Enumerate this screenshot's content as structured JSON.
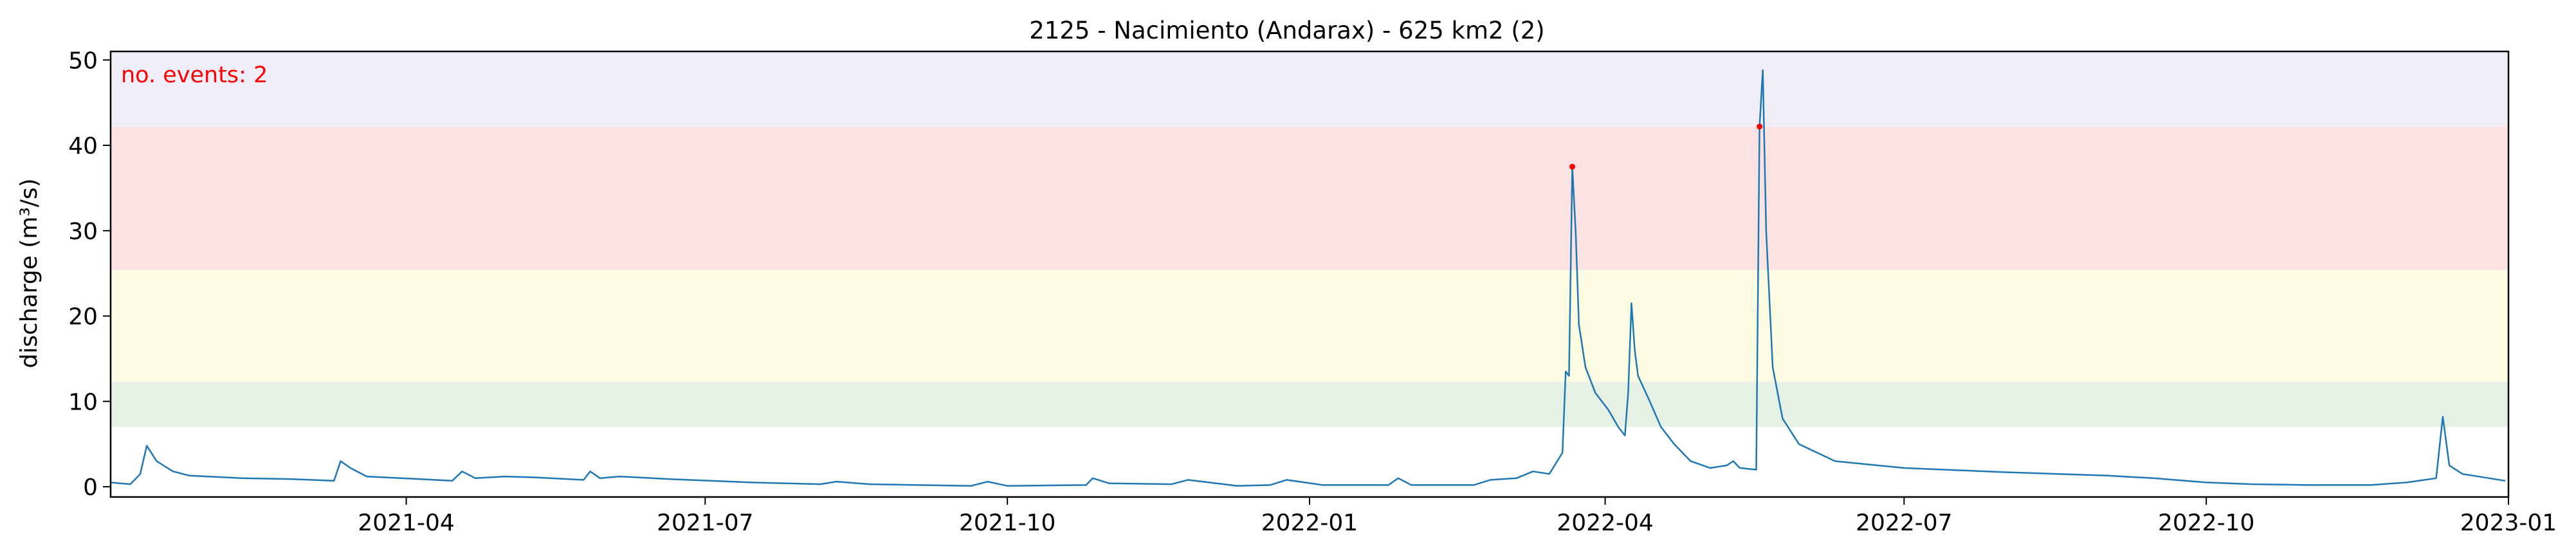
{
  "chart_data": {
    "type": "line",
    "title": "2125 - Nacimiento (Andarax) - 625 km2 (2)",
    "xlabel": "",
    "ylabel": "discharge (m³/s)",
    "annotation": "no. events: 2",
    "xlim": [
      "2021-01-01",
      "2023-01-01"
    ],
    "ylim": [
      -1.2,
      51
    ],
    "xticks": [
      {
        "date": "2021-04-01",
        "label": "2021-04"
      },
      {
        "date": "2021-07-01",
        "label": "2021-07"
      },
      {
        "date": "2021-10-01",
        "label": "2021-10"
      },
      {
        "date": "2022-01-01",
        "label": "2022-01"
      },
      {
        "date": "2022-04-01",
        "label": "2022-04"
      },
      {
        "date": "2022-07-01",
        "label": "2022-07"
      },
      {
        "date": "2022-10-01",
        "label": "2022-10"
      },
      {
        "date": "2023-01-01",
        "label": "2023-01"
      }
    ],
    "yticks": [
      0,
      10,
      20,
      30,
      40,
      50
    ],
    "threshold_bands": [
      {
        "from": 7.0,
        "to": 12.3,
        "color": "#e5f1e5"
      },
      {
        "from": 12.3,
        "to": 25.4,
        "color": "#fdfde3"
      },
      {
        "from": 25.4,
        "to": 42.2,
        "color": "#fde2e4"
      },
      {
        "from": 42.2,
        "to": 51,
        "color": "#f1eefa"
      }
    ],
    "series": [
      {
        "color": "#1f77b4",
        "points": [
          [
            "2021-01-01",
            0.5
          ],
          [
            "2021-01-07",
            0.3
          ],
          [
            "2021-01-10",
            1.5
          ],
          [
            "2021-01-12",
            4.8
          ],
          [
            "2021-01-15",
            3.0
          ],
          [
            "2021-01-20",
            1.8
          ],
          [
            "2021-01-25",
            1.3
          ],
          [
            "2021-02-10",
            1.0
          ],
          [
            "2021-02-25",
            0.9
          ],
          [
            "2021-03-10",
            0.7
          ],
          [
            "2021-03-12",
            3.0
          ],
          [
            "2021-03-15",
            2.2
          ],
          [
            "2021-03-20",
            1.2
          ],
          [
            "2021-04-05",
            0.9
          ],
          [
            "2021-04-15",
            0.7
          ],
          [
            "2021-04-18",
            1.8
          ],
          [
            "2021-04-22",
            1.0
          ],
          [
            "2021-05-01",
            1.2
          ],
          [
            "2021-05-10",
            1.1
          ],
          [
            "2021-05-25",
            0.8
          ],
          [
            "2021-05-27",
            1.8
          ],
          [
            "2021-05-30",
            1.0
          ],
          [
            "2021-06-05",
            1.2
          ],
          [
            "2021-06-20",
            0.9
          ],
          [
            "2021-07-15",
            0.5
          ],
          [
            "2021-08-05",
            0.3
          ],
          [
            "2021-08-10",
            0.6
          ],
          [
            "2021-08-20",
            0.3
          ],
          [
            "2021-09-20",
            0.1
          ],
          [
            "2021-09-25",
            0.6
          ],
          [
            "2021-10-01",
            0.1
          ],
          [
            "2021-10-25",
            0.2
          ],
          [
            "2021-10-27",
            1.0
          ],
          [
            "2021-11-01",
            0.4
          ],
          [
            "2021-11-20",
            0.3
          ],
          [
            "2021-11-25",
            0.8
          ],
          [
            "2021-12-10",
            0.1
          ],
          [
            "2021-12-20",
            0.2
          ],
          [
            "2021-12-25",
            0.8
          ],
          [
            "2022-01-05",
            0.2
          ],
          [
            "2022-01-25",
            0.2
          ],
          [
            "2022-01-28",
            1.0
          ],
          [
            "2022-02-01",
            0.2
          ],
          [
            "2022-02-20",
            0.2
          ],
          [
            "2022-02-25",
            0.8
          ],
          [
            "2022-03-05",
            1.0
          ],
          [
            "2022-03-10",
            1.8
          ],
          [
            "2022-03-15",
            1.5
          ],
          [
            "2022-03-19",
            4.0
          ],
          [
            "2022-03-20",
            13.5
          ],
          [
            "2022-03-21",
            13.0
          ],
          [
            "2022-03-22",
            37.5
          ],
          [
            "2022-03-23",
            30.0
          ],
          [
            "2022-03-24",
            19.0
          ],
          [
            "2022-03-26",
            14.0
          ],
          [
            "2022-03-29",
            11.0
          ],
          [
            "2022-04-02",
            9.0
          ],
          [
            "2022-04-05",
            7.0
          ],
          [
            "2022-04-07",
            6.0
          ],
          [
            "2022-04-08",
            11.0
          ],
          [
            "2022-04-09",
            21.5
          ],
          [
            "2022-04-10",
            16.0
          ],
          [
            "2022-04-11",
            13.0
          ],
          [
            "2022-04-14",
            10.5
          ],
          [
            "2022-04-18",
            7.0
          ],
          [
            "2022-04-22",
            5.0
          ],
          [
            "2022-04-27",
            3.0
          ],
          [
            "2022-05-03",
            2.2
          ],
          [
            "2022-05-08",
            2.5
          ],
          [
            "2022-05-10",
            3.0
          ],
          [
            "2022-05-12",
            2.2
          ],
          [
            "2022-05-17",
            2.0
          ],
          [
            "2022-05-18",
            42.2
          ],
          [
            "2022-05-19",
            48.8
          ],
          [
            "2022-05-20",
            30.0
          ],
          [
            "2022-05-22",
            14.0
          ],
          [
            "2022-05-25",
            8.0
          ],
          [
            "2022-05-30",
            5.0
          ],
          [
            "2022-06-10",
            3.0
          ],
          [
            "2022-07-01",
            2.2
          ],
          [
            "2022-08-01",
            1.7
          ],
          [
            "2022-09-01",
            1.3
          ],
          [
            "2022-09-15",
            1.0
          ],
          [
            "2022-10-01",
            0.5
          ],
          [
            "2022-10-15",
            0.3
          ],
          [
            "2022-11-01",
            0.2
          ],
          [
            "2022-11-20",
            0.2
          ],
          [
            "2022-12-01",
            0.5
          ],
          [
            "2022-12-10",
            1.0
          ],
          [
            "2022-12-12",
            8.2
          ],
          [
            "2022-12-14",
            2.5
          ],
          [
            "2022-12-18",
            1.5
          ],
          [
            "2022-12-31",
            0.7
          ]
        ]
      }
    ],
    "events": [
      {
        "date": "2022-03-22",
        "value": 37.5
      },
      {
        "date": "2022-05-18",
        "value": 42.2
      }
    ],
    "event_color": "#ff0000",
    "grid": false,
    "legend": "none"
  }
}
